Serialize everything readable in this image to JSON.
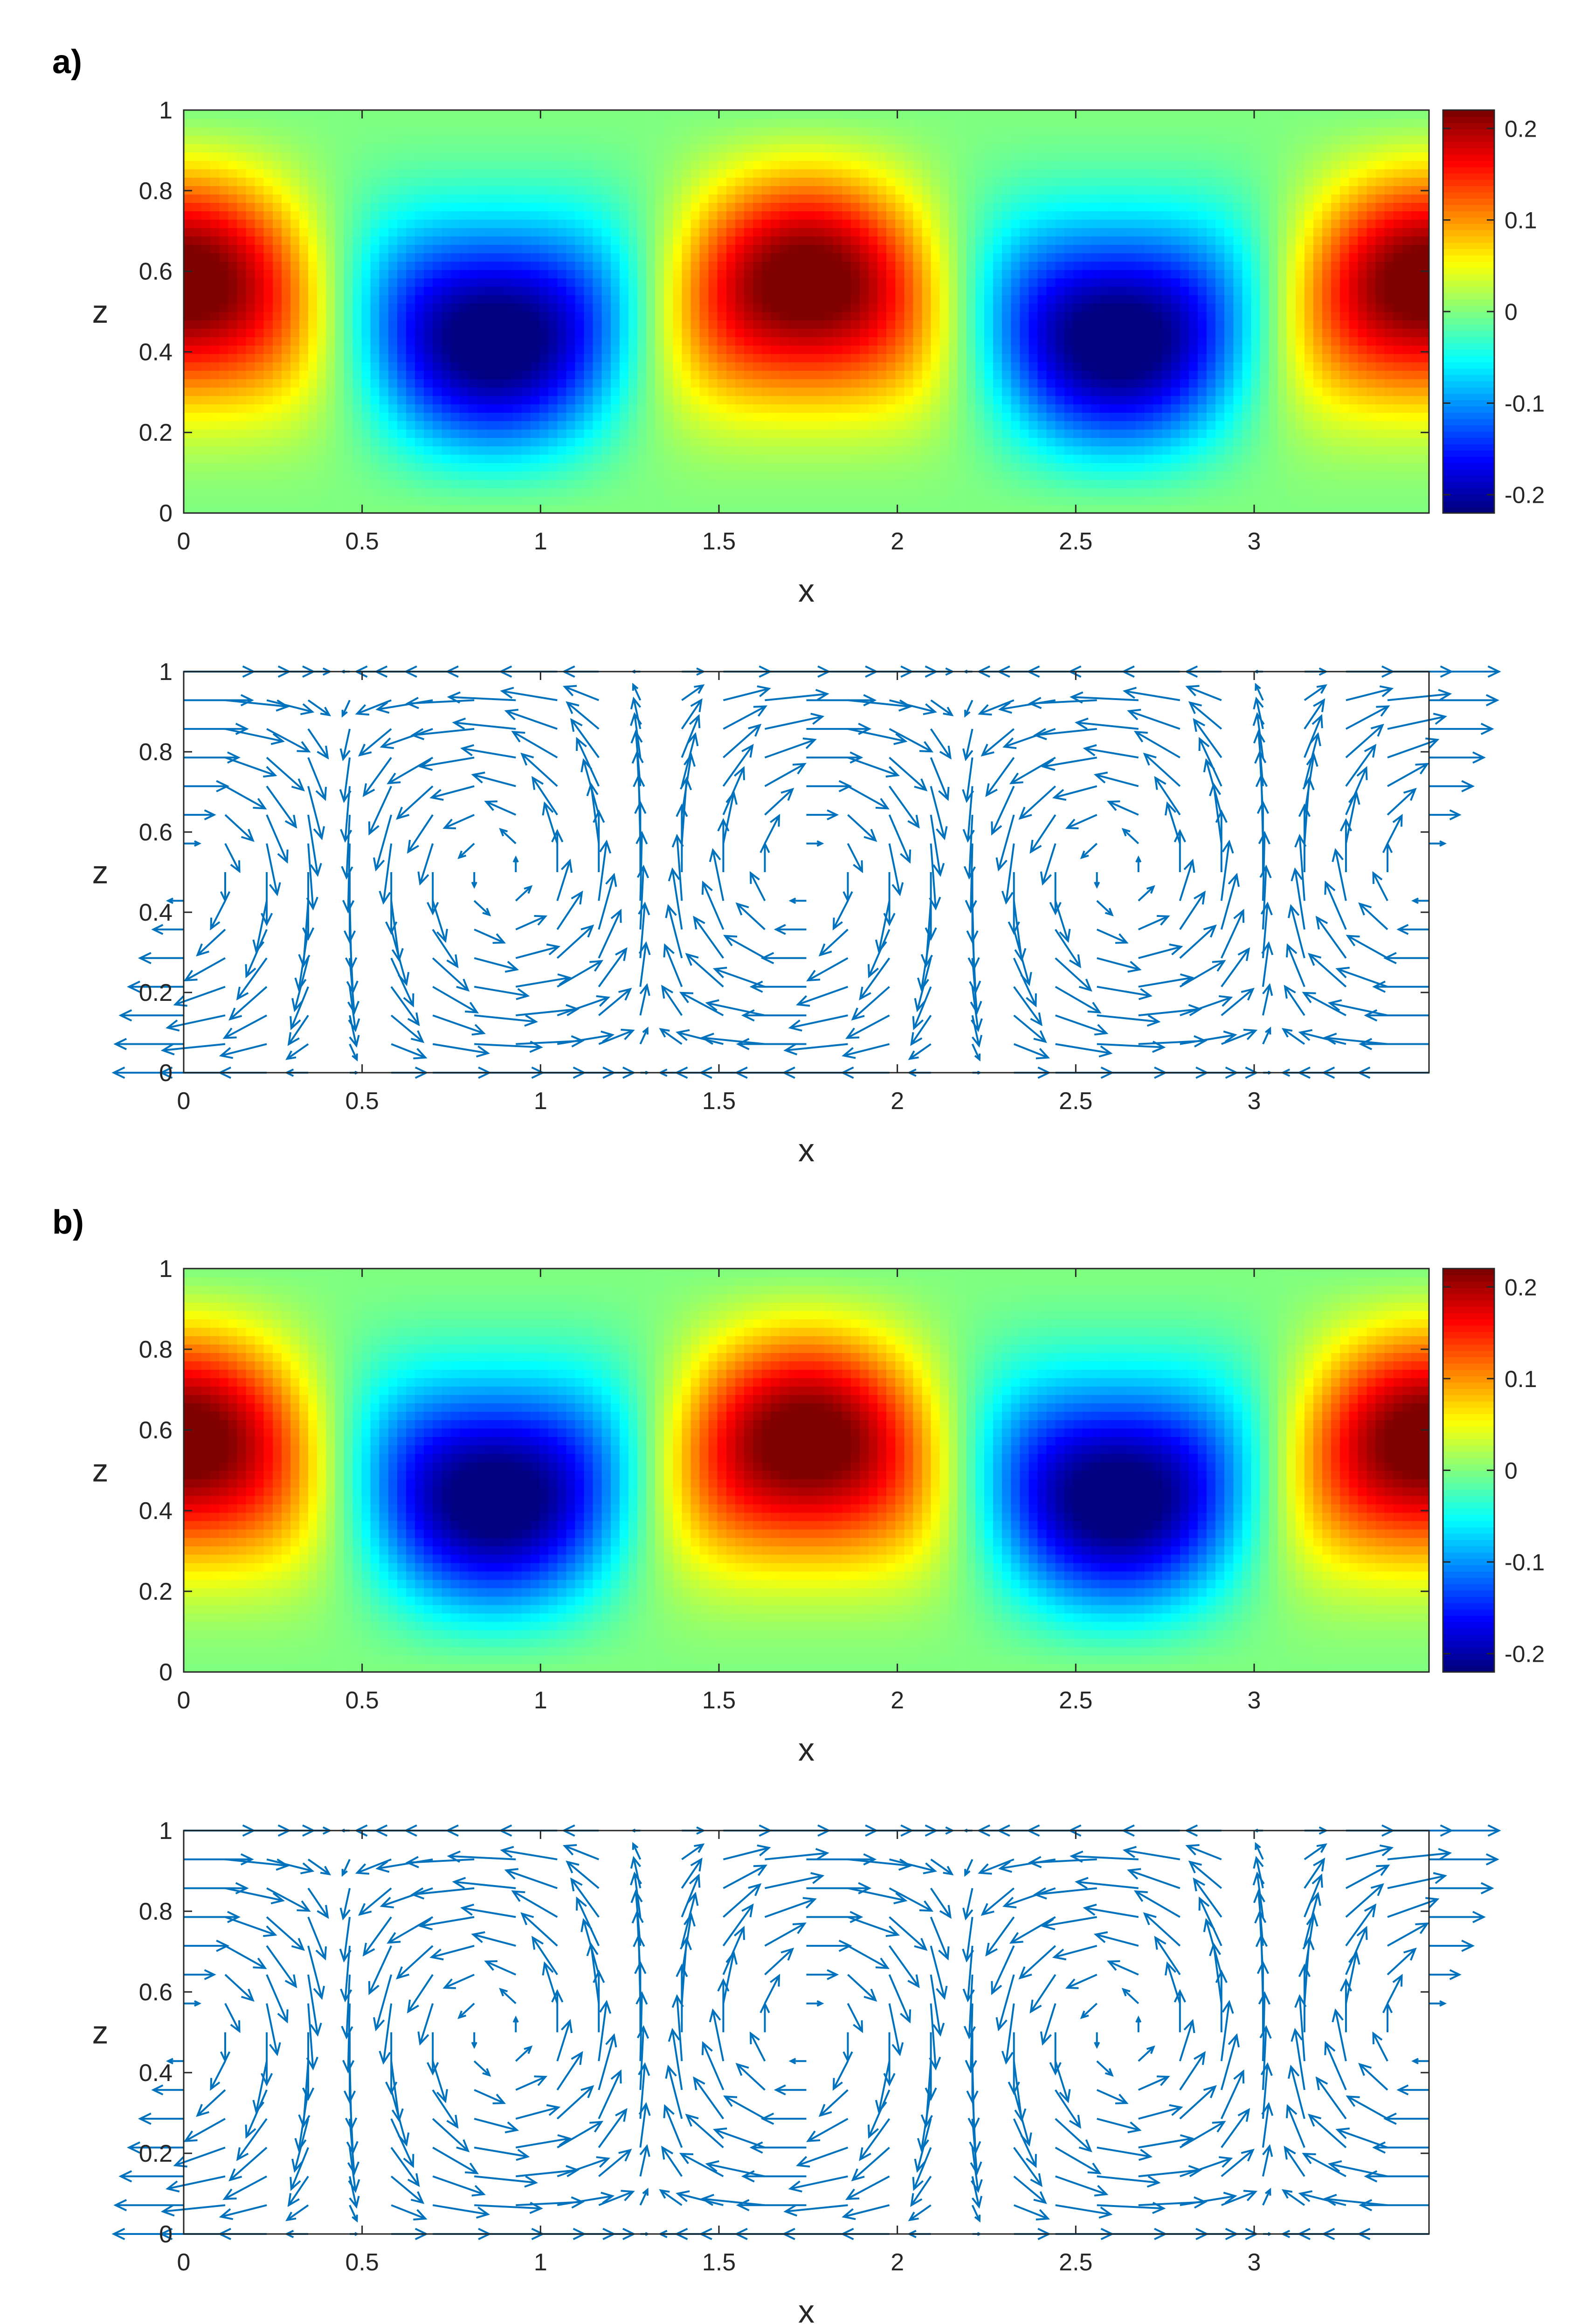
{
  "panels": [
    {
      "label": "a)"
    },
    {
      "label": "b)"
    }
  ],
  "chart_data": [
    {
      "type": "heatmap",
      "panel": "a)",
      "xlabel": "x",
      "ylabel": "z",
      "xlim": [
        0,
        3.49
      ],
      "ylim": [
        0,
        1
      ],
      "xticks": [
        "0",
        "0.5",
        "1",
        "1.5",
        "2",
        "2.5",
        "3"
      ],
      "yticks": [
        "0",
        "0.2",
        "0.4",
        "0.6",
        "0.8",
        "1"
      ],
      "colormap": "jet",
      "clim": [
        -0.22,
        0.22
      ],
      "colorbar_ticks": [
        "0.2",
        "0.1",
        "0",
        "-0.1",
        "-0.2"
      ],
      "field": "amplitude 0.22 × sin(2πx/1.745 + π/2) × sin(πz) shape; maxima 0.22 near x=0,1.745,3.49 (z≈0.65); minima -0.22 near x=0.87,2.62 (z≈0.42)"
    },
    {
      "type": "quiver",
      "panel": "a)",
      "xlabel": "x",
      "ylabel": "z",
      "xlim": [
        0,
        3.49
      ],
      "ylim": [
        0,
        1
      ],
      "xticks": [
        "0",
        "0.5",
        "1",
        "1.5",
        "2",
        "2.5",
        "3"
      ],
      "yticks": [
        "0",
        "0.2",
        "0.4",
        "0.6",
        "0.8",
        "1"
      ],
      "arrow_color": "#0072BD",
      "flow": "counter-rotating convection rolls with period 1.745 in x; upwelling near x=0.87, 2.62; downwelling near x=0, 1.745, 3.49"
    },
    {
      "type": "heatmap",
      "panel": "b)",
      "xlabel": "x",
      "ylabel": "z",
      "xlim": [
        0,
        3.49
      ],
      "ylim": [
        0,
        1
      ],
      "xticks": [
        "0",
        "0.5",
        "1",
        "1.5",
        "2",
        "2.5",
        "3"
      ],
      "yticks": [
        "0",
        "0.2",
        "0.4",
        "0.6",
        "0.8",
        "1"
      ],
      "colormap": "jet",
      "clim": [
        -0.22,
        0.22
      ],
      "colorbar_ticks": [
        "0.2",
        "0.1",
        "0",
        "-0.1",
        "-0.2"
      ],
      "field": "same pattern as panel a"
    },
    {
      "type": "quiver",
      "panel": "b)",
      "xlabel": "x",
      "ylabel": "z",
      "xlim": [
        0,
        3.49
      ],
      "ylim": [
        0,
        1
      ],
      "xticks": [
        "0",
        "0.5",
        "1",
        "1.5",
        "2",
        "2.5",
        "3"
      ],
      "yticks": [
        "0",
        "0.2",
        "0.4",
        "0.6",
        "0.8",
        "1"
      ],
      "arrow_color": "#0072BD",
      "flow": "same roll pattern as panel a"
    }
  ]
}
